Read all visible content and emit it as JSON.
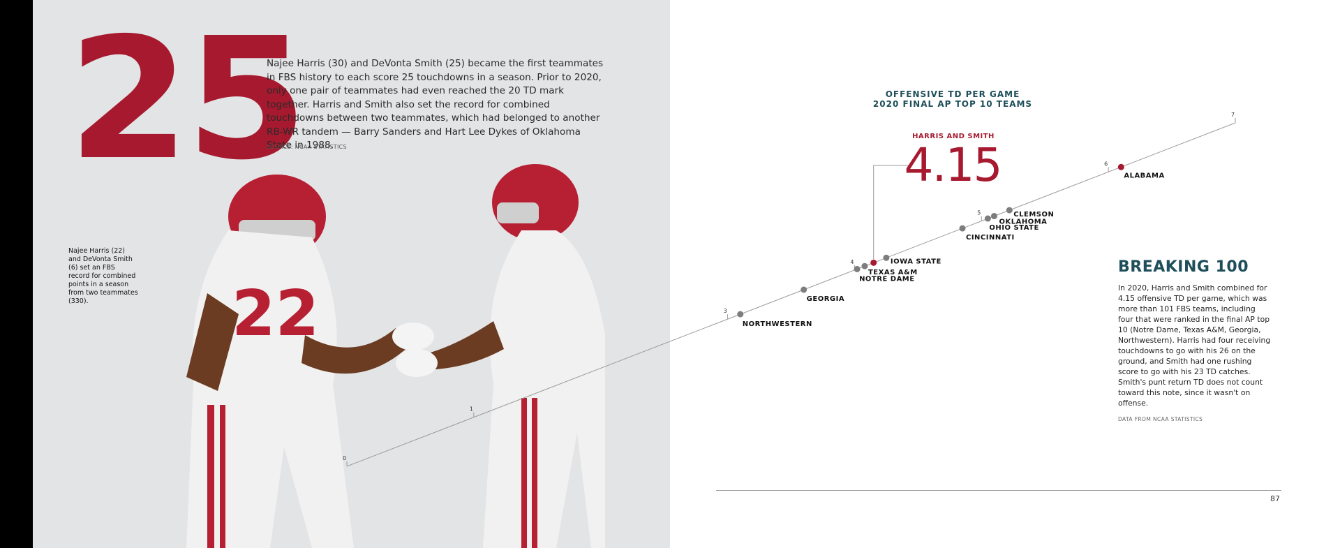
{
  "big_stat": "25",
  "intro": "Najee Harris (30) and DeVonta Smith (25) became the first teammates in FBS history to each score 25 touchdowns in a season. Prior to 2020, only one pair of teammates had even reached the 20 TD mark together. Harris and Smith also set the record for combined touchdowns between two teammates, which had belonged to another RB-WR tandem — Barry  Sanders and Hart Lee Dykes of Oklahoma State in 1988.",
  "intro_source": "SOURCE: NCAA STATISTICS",
  "caption": "Najee Harris (22) and DeVonta Smith (6) set an FBS record for combined points in a season from two teammates (330).",
  "colors": {
    "crimson": "#a6192e",
    "teal": "#1d4e5a",
    "dot_gray": "#7d7d7d"
  },
  "chart_data": {
    "type": "scatter",
    "title": "OFFENSIVE TD PER GAME\n2020 FINAL AP TOP 10 TEAMS",
    "axis_ticks": [
      0,
      1,
      3,
      4,
      5,
      6,
      7
    ],
    "points": [
      {
        "label": "NORTHWESTERN",
        "value": 3.1,
        "highlight": false
      },
      {
        "label": "GEORGIA",
        "value": 3.6,
        "highlight": false
      },
      {
        "label": "NOTRE DAME",
        "value": 4.02,
        "highlight": false
      },
      {
        "label": "TEXAS A&M",
        "value": 4.08,
        "highlight": false
      },
      {
        "label": "HARRIS AND SMITH",
        "value": 4.15,
        "highlight": true
      },
      {
        "label": "IOWA STATE",
        "value": 4.25,
        "highlight": false
      },
      {
        "label": "CINCINNATI",
        "value": 4.85,
        "highlight": false
      },
      {
        "label": "OHIO STATE",
        "value": 5.05,
        "highlight": false
      },
      {
        "label": "OKLAHOMA",
        "value": 5.1,
        "highlight": false
      },
      {
        "label": "CLEMSON",
        "value": 5.22,
        "highlight": false
      },
      {
        "label": "ALABAMA",
        "value": 6.1,
        "highlight": true
      }
    ]
  },
  "highlight_label": "HARRIS AND SMITH",
  "highlight_value": "4.15",
  "sidebar": {
    "title": "BREAKING 100",
    "body": "In 2020, Harris and Smith combined for 4.15 offensive TD per game, which was more than 101 FBS teams, including four that were ranked in the final AP top 10 (Notre Dame, Texas A&M, Georgia, Northwestern). Harris had four receiving touchdowns to go with his 26 on the ground, and Smith had one rushing score to go with his 23 TD catches. Smith's punt return TD does not count toward this note, since it wasn't on offense.",
    "source": "DATA FROM NCAA STATISTICS"
  },
  "page_number": "87"
}
